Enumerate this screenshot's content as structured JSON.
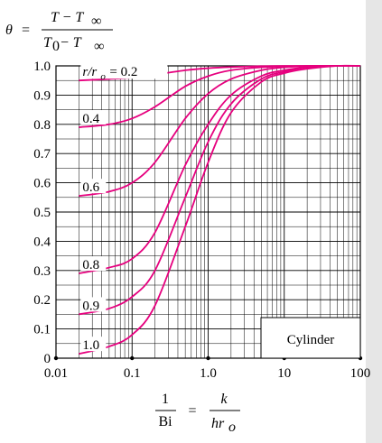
{
  "chart_data": {
    "type": "line",
    "title_equation": {
      "theta": "θ",
      "eq": "=",
      "num": "T − T",
      "num_sub": "∞",
      "den": "T",
      "den_sub0": "0",
      "den_mid": " − T",
      "den_sub": "∞"
    },
    "xlabel_equation": {
      "one": "1",
      "bi": "Bi",
      "eq": "=",
      "k": "k",
      "hr": "hr",
      "hr_sub": "o"
    },
    "x_scale": "log",
    "xlim": [
      0.01,
      100
    ],
    "ylim": [
      0,
      1.0
    ],
    "x_ticks": [
      "0.01",
      "0.1",
      "1.0",
      "10",
      "100"
    ],
    "y_ticks": [
      "0",
      "0.1",
      "0.2",
      "0.3",
      "0.4",
      "0.5",
      "0.6",
      "0.7",
      "0.8",
      "0.9",
      "1.0"
    ],
    "grid": true,
    "annotation": "Cylinder",
    "series": [
      {
        "name": "r/ro = 0.2",
        "label": "= 0.2",
        "x": [
          0.02,
          0.05,
          0.1,
          0.2,
          0.5,
          1,
          2,
          5,
          10,
          20,
          50,
          100
        ],
        "y": [
          0.95,
          0.955,
          0.96,
          0.97,
          0.985,
          0.992,
          0.996,
          0.999,
          1.0,
          1.0,
          1.0,
          1.0
        ]
      },
      {
        "name": "r/ro = 0.4",
        "label": "0.4",
        "x": [
          0.02,
          0.05,
          0.1,
          0.2,
          0.5,
          1,
          2,
          5,
          10,
          20,
          50,
          100
        ],
        "y": [
          0.79,
          0.8,
          0.82,
          0.86,
          0.93,
          0.965,
          0.985,
          0.995,
          0.998,
          1.0,
          1.0,
          1.0
        ]
      },
      {
        "name": "r/ro = 0.6",
        "label": "0.6",
        "x": [
          0.02,
          0.05,
          0.1,
          0.2,
          0.5,
          1,
          2,
          5,
          10,
          20,
          50,
          100
        ],
        "y": [
          0.555,
          0.57,
          0.6,
          0.67,
          0.82,
          0.905,
          0.955,
          0.985,
          0.995,
          0.999,
          1.0,
          1.0
        ]
      },
      {
        "name": "r/ro = 0.8",
        "label": "0.8",
        "x": [
          0.02,
          0.05,
          0.1,
          0.2,
          0.5,
          1,
          2,
          5,
          10,
          20,
          50,
          100
        ],
        "y": [
          0.29,
          0.31,
          0.34,
          0.43,
          0.66,
          0.8,
          0.9,
          0.965,
          0.985,
          0.995,
          1.0,
          1.0
        ]
      },
      {
        "name": "r/ro = 0.9",
        "label": "0.9",
        "x": [
          0.02,
          0.05,
          0.1,
          0.2,
          0.5,
          1,
          2,
          5,
          10,
          20,
          50,
          100
        ],
        "y": [
          0.15,
          0.17,
          0.21,
          0.3,
          0.55,
          0.74,
          0.87,
          0.955,
          0.98,
          0.995,
          1.0,
          1.0
        ]
      },
      {
        "name": "r/ro = 1.0",
        "label": "1.0",
        "x": [
          0.02,
          0.05,
          0.1,
          0.2,
          0.5,
          1,
          2,
          5,
          10,
          20,
          50,
          100
        ],
        "y": [
          0.015,
          0.04,
          0.08,
          0.18,
          0.45,
          0.67,
          0.84,
          0.945,
          0.975,
          0.99,
          1.0,
          1.0
        ]
      }
    ],
    "colors": {
      "curve": "#e6007e",
      "grid": "#000000"
    }
  }
}
